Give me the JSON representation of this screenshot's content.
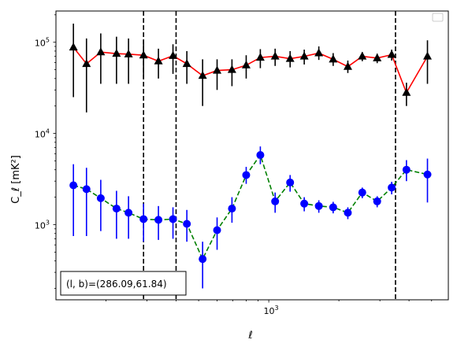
{
  "chart_data": {
    "type": "scatter",
    "title": "",
    "xlabel": "ℓ",
    "ylabel": "C_ℓ [mK²]",
    "x_scale": "log",
    "y_scale": "log",
    "xlim": [
      122,
      5900
    ],
    "ylim": [
      150,
      220000
    ],
    "grid": false,
    "legend": {
      "placement": "upper-right",
      "entries": []
    },
    "y_ticks": [
      {
        "value": 1000,
        "base": "10",
        "exp": "3"
      },
      {
        "value": 10000,
        "base": "10",
        "exp": "4"
      },
      {
        "value": 100000,
        "base": "10",
        "exp": "5"
      }
    ],
    "x_ticks": [
      {
        "value": 1000,
        "base": "10",
        "exp": "3"
      }
    ],
    "vlines": [
      290,
      400,
      3500
    ],
    "annotation": {
      "text": "(l, b)=(286.09,61.84)"
    },
    "series": [
      {
        "color": "#000000",
        "line_color": "#ff0000",
        "line_style": "solid",
        "marker": "triangle",
        "points": [
          {
            "x": 145,
            "y": 88000,
            "lo": 25000,
            "hi": 160000
          },
          {
            "x": 165,
            "y": 58000,
            "lo": 17000,
            "hi": 110000
          },
          {
            "x": 190,
            "y": 78000,
            "lo": 35000,
            "hi": 125000
          },
          {
            "x": 222,
            "y": 75000,
            "lo": 35000,
            "hi": 115000
          },
          {
            "x": 250,
            "y": 74000,
            "lo": 35000,
            "hi": 110000
          },
          {
            "x": 290,
            "y": 72000,
            "lo": 40000,
            "hi": 105000
          },
          {
            "x": 336,
            "y": 62000,
            "lo": 40000,
            "hi": 85000
          },
          {
            "x": 388,
            "y": 71000,
            "lo": 45000,
            "hi": 95000
          },
          {
            "x": 445,
            "y": 58000,
            "lo": 35000,
            "hi": 80000
          },
          {
            "x": 520,
            "y": 43000,
            "lo": 20000,
            "hi": 65000
          },
          {
            "x": 600,
            "y": 49000,
            "lo": 30000,
            "hi": 65000
          },
          {
            "x": 695,
            "y": 50000,
            "lo": 33000,
            "hi": 65000
          },
          {
            "x": 800,
            "y": 56000,
            "lo": 40000,
            "hi": 72000
          },
          {
            "x": 920,
            "y": 68000,
            "lo": 52000,
            "hi": 84000
          },
          {
            "x": 1065,
            "y": 70000,
            "lo": 55000,
            "hi": 85000
          },
          {
            "x": 1235,
            "y": 66000,
            "lo": 53000,
            "hi": 80000
          },
          {
            "x": 1420,
            "y": 70000,
            "lo": 57000,
            "hi": 83000
          },
          {
            "x": 1640,
            "y": 76000,
            "lo": 64000,
            "hi": 90000
          },
          {
            "x": 1890,
            "y": 65000,
            "lo": 55000,
            "hi": 76000
          },
          {
            "x": 2185,
            "y": 54000,
            "lo": 46000,
            "hi": 63000
          },
          {
            "x": 2520,
            "y": 70000,
            "lo": 62000,
            "hi": 78000
          },
          {
            "x": 2920,
            "y": 67000,
            "lo": 59000,
            "hi": 75000
          },
          {
            "x": 3370,
            "y": 73000,
            "lo": 63000,
            "hi": 83000
          },
          {
            "x": 3900,
            "y": 28000,
            "lo": 20000,
            "hi": 36000
          },
          {
            "x": 4800,
            "y": 70000,
            "lo": 35000,
            "hi": 105000
          }
        ]
      },
      {
        "color": "#0000ff",
        "line_color": "#008000",
        "line_style": "dashed",
        "marker": "circle",
        "points": [
          {
            "x": 145,
            "y": 2700,
            "lo": 750,
            "hi": 4600
          },
          {
            "x": 165,
            "y": 2450,
            "lo": 750,
            "hi": 4200
          },
          {
            "x": 190,
            "y": 1950,
            "lo": 850,
            "hi": 3100
          },
          {
            "x": 222,
            "y": 1500,
            "lo": 700,
            "hi": 2350
          },
          {
            "x": 250,
            "y": 1350,
            "lo": 700,
            "hi": 2050
          },
          {
            "x": 290,
            "y": 1150,
            "lo": 650,
            "hi": 1700
          },
          {
            "x": 336,
            "y": 1130,
            "lo": 680,
            "hi": 1600
          },
          {
            "x": 388,
            "y": 1150,
            "lo": 700,
            "hi": 1550
          },
          {
            "x": 445,
            "y": 1020,
            "lo": 650,
            "hi": 1450
          },
          {
            "x": 520,
            "y": 420,
            "lo": 200,
            "hi": 650
          },
          {
            "x": 600,
            "y": 870,
            "lo": 530,
            "hi": 1200
          },
          {
            "x": 695,
            "y": 1500,
            "lo": 1050,
            "hi": 2000
          },
          {
            "x": 800,
            "y": 3500,
            "lo": 2800,
            "hi": 4300
          },
          {
            "x": 920,
            "y": 5800,
            "lo": 4600,
            "hi": 7200
          },
          {
            "x": 1065,
            "y": 1800,
            "lo": 1350,
            "hi": 2250
          },
          {
            "x": 1235,
            "y": 2900,
            "lo": 2300,
            "hi": 3500
          },
          {
            "x": 1420,
            "y": 1700,
            "lo": 1400,
            "hi": 2000
          },
          {
            "x": 1640,
            "y": 1600,
            "lo": 1350,
            "hi": 1850
          },
          {
            "x": 1890,
            "y": 1550,
            "lo": 1330,
            "hi": 1780
          },
          {
            "x": 2185,
            "y": 1350,
            "lo": 1150,
            "hi": 1550
          },
          {
            "x": 2520,
            "y": 2250,
            "lo": 1950,
            "hi": 2550
          },
          {
            "x": 2920,
            "y": 1800,
            "lo": 1550,
            "hi": 2050
          },
          {
            "x": 3370,
            "y": 2550,
            "lo": 2150,
            "hi": 2950
          },
          {
            "x": 3900,
            "y": 4000,
            "lo": 3000,
            "hi": 5100
          },
          {
            "x": 4800,
            "y": 3550,
            "lo": 1750,
            "hi": 5300
          }
        ]
      }
    ]
  }
}
